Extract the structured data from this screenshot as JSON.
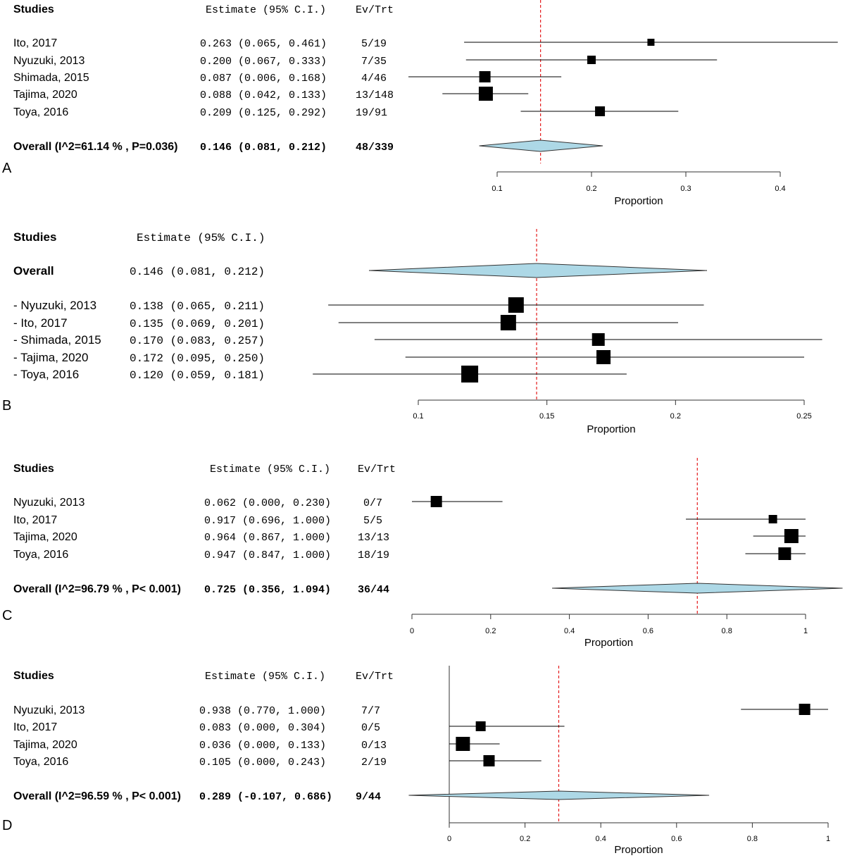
{
  "colors": {
    "marker": "#000000",
    "diamond_fill": "#add8e6",
    "reference_line": "#e41a1c"
  },
  "chart_data": [
    {
      "type": "forest",
      "panel": "A",
      "headers": {
        "studies": "Studies",
        "estimate": "Estimate (95% C.I.)",
        "evtrt": "Ev/Trt"
      },
      "xlabel": "Proportion",
      "xticks": [
        0.1,
        0.2,
        0.3,
        0.4
      ],
      "tick_labels": [
        "0.1",
        "0.2",
        "0.3",
        "0.4"
      ],
      "studies": [
        {
          "label": "Ito, 2017",
          "est": 0.263,
          "lo": 0.065,
          "hi": 0.461,
          "text": "0.263 (0.065, 0.461)",
          "evtrt": "5/19",
          "marker_weight": 5
        },
        {
          "label": "Nyuzuki, 2013",
          "est": 0.2,
          "lo": 0.067,
          "hi": 0.333,
          "text": "0.200 (0.067, 0.333)",
          "evtrt": "7/35",
          "marker_weight": 6
        },
        {
          "label": "Shimada, 2015",
          "est": 0.087,
          "lo": 0.006,
          "hi": 0.168,
          "text": "0.087 (0.006, 0.168)",
          "evtrt": "4/46",
          "marker_weight": 8
        },
        {
          "label": "Tajima, 2020",
          "est": 0.088,
          "lo": 0.042,
          "hi": 0.133,
          "text": "0.088 (0.042, 0.133)",
          "evtrt": "13/148",
          "marker_weight": 10
        },
        {
          "label": "Toya, 2016",
          "est": 0.209,
          "lo": 0.125,
          "hi": 0.292,
          "text": "0.209 (0.125, 0.292)",
          "evtrt": "19/91",
          "marker_weight": 7
        }
      ],
      "overall": {
        "label": "Overall (I^2=61.14 % , P=0.036)",
        "est": 0.146,
        "lo": 0.081,
        "hi": 0.212,
        "text": "0.146 (0.081, 0.212)",
        "evtrt": "48/339"
      }
    },
    {
      "type": "forest",
      "panel": "B",
      "headers": {
        "studies": "Studies",
        "estimate": "Estimate (95% C.I.)"
      },
      "xlabel": "Proportion",
      "xticks": [
        0.1,
        0.15,
        0.2,
        0.25
      ],
      "tick_labels": [
        "0.1",
        "0.15",
        "0.2",
        "0.25"
      ],
      "overall": {
        "label": "Overall",
        "est": 0.146,
        "lo": 0.081,
        "hi": 0.212,
        "text": "0.146 (0.081, 0.212)"
      },
      "studies": [
        {
          "label": "- Nyuzuki, 2013",
          "est": 0.138,
          "lo": 0.065,
          "hi": 0.211,
          "text": "0.138 (0.065, 0.211)",
          "marker_weight": 11
        },
        {
          "label": "- Ito, 2017",
          "est": 0.135,
          "lo": 0.069,
          "hi": 0.201,
          "text": "0.135 (0.069, 0.201)",
          "marker_weight": 11
        },
        {
          "label": "- Shimada, 2015",
          "est": 0.17,
          "lo": 0.083,
          "hi": 0.257,
          "text": "0.170 (0.083, 0.257)",
          "marker_weight": 9
        },
        {
          "label": "- Tajima, 2020",
          "est": 0.172,
          "lo": 0.095,
          "hi": 0.25,
          "text": "0.172 (0.095, 0.250)",
          "marker_weight": 10
        },
        {
          "label": "- Toya, 2016",
          "est": 0.12,
          "lo": 0.059,
          "hi": 0.181,
          "text": "0.120 (0.059, 0.181)",
          "marker_weight": 12
        }
      ]
    },
    {
      "type": "forest",
      "panel": "C",
      "headers": {
        "studies": "Studies",
        "estimate": "Estimate (95% C.I.)",
        "evtrt": "Ev/Trt"
      },
      "xlabel": "Proportion",
      "xticks": [
        0,
        0.2,
        0.4,
        0.6,
        0.8,
        1
      ],
      "tick_labels": [
        "0",
        "0.2",
        "0.4",
        "0.6",
        "0.8",
        "1"
      ],
      "studies": [
        {
          "label": "Nyuzuki, 2013",
          "est": 0.062,
          "lo": 0.0,
          "hi": 0.23,
          "text": "0.062 (0.000, 0.230)",
          "evtrt": "0/7",
          "marker_weight": 8
        },
        {
          "label": "Ito, 2017",
          "est": 0.917,
          "lo": 0.696,
          "hi": 1.0,
          "text": "0.917 (0.696, 1.000)",
          "evtrt": "5/5",
          "marker_weight": 6
        },
        {
          "label": "Tajima, 2020",
          "est": 0.964,
          "lo": 0.867,
          "hi": 1.0,
          "text": "0.964 (0.867, 1.000)",
          "evtrt": "13/13",
          "marker_weight": 10
        },
        {
          "label": "Toya, 2016",
          "est": 0.947,
          "lo": 0.847,
          "hi": 1.0,
          "text": "0.947 (0.847, 1.000)",
          "evtrt": "18/19",
          "marker_weight": 9
        }
      ],
      "overall": {
        "label": "Overall (I^2=96.79 % , P< 0.001)",
        "est": 0.725,
        "lo": 0.356,
        "hi": 1.094,
        "text": "0.725 (0.356, 1.094)",
        "evtrt": "36/44"
      }
    },
    {
      "type": "forest",
      "panel": "D",
      "headers": {
        "studies": "Studies",
        "estimate": "Estimate (95% C.I.)",
        "evtrt": "Ev/Trt"
      },
      "xlabel": "Proportion",
      "xticks": [
        0,
        0.2,
        0.4,
        0.6,
        0.8,
        1
      ],
      "tick_labels": [
        "0",
        "0.2",
        "0.4",
        "0.6",
        "0.8",
        "1"
      ],
      "studies": [
        {
          "label": "Nyuzuki, 2013",
          "est": 0.938,
          "lo": 0.77,
          "hi": 1.0,
          "text": "0.938 (0.770, 1.000)",
          "evtrt": "7/7",
          "marker_weight": 8
        },
        {
          "label": "Ito, 2017",
          "est": 0.083,
          "lo": 0.0,
          "hi": 0.304,
          "text": "0.083 (0.000, 0.304)",
          "evtrt": "0/5",
          "marker_weight": 7
        },
        {
          "label": "Tajima, 2020",
          "est": 0.036,
          "lo": 0.0,
          "hi": 0.133,
          "text": "0.036 (0.000, 0.133)",
          "evtrt": "0/13",
          "marker_weight": 10
        },
        {
          "label": "Toya, 2016",
          "est": 0.105,
          "lo": 0.0,
          "hi": 0.243,
          "text": "0.105 (0.000, 0.243)",
          "evtrt": "2/19",
          "marker_weight": 8
        }
      ],
      "overall": {
        "label": "Overall (I^2=96.59 % , P< 0.001)",
        "est": 0.289,
        "lo": -0.107,
        "hi": 0.686,
        "text": "0.289 (-0.107, 0.686)",
        "evtrt": "9/44"
      }
    }
  ]
}
